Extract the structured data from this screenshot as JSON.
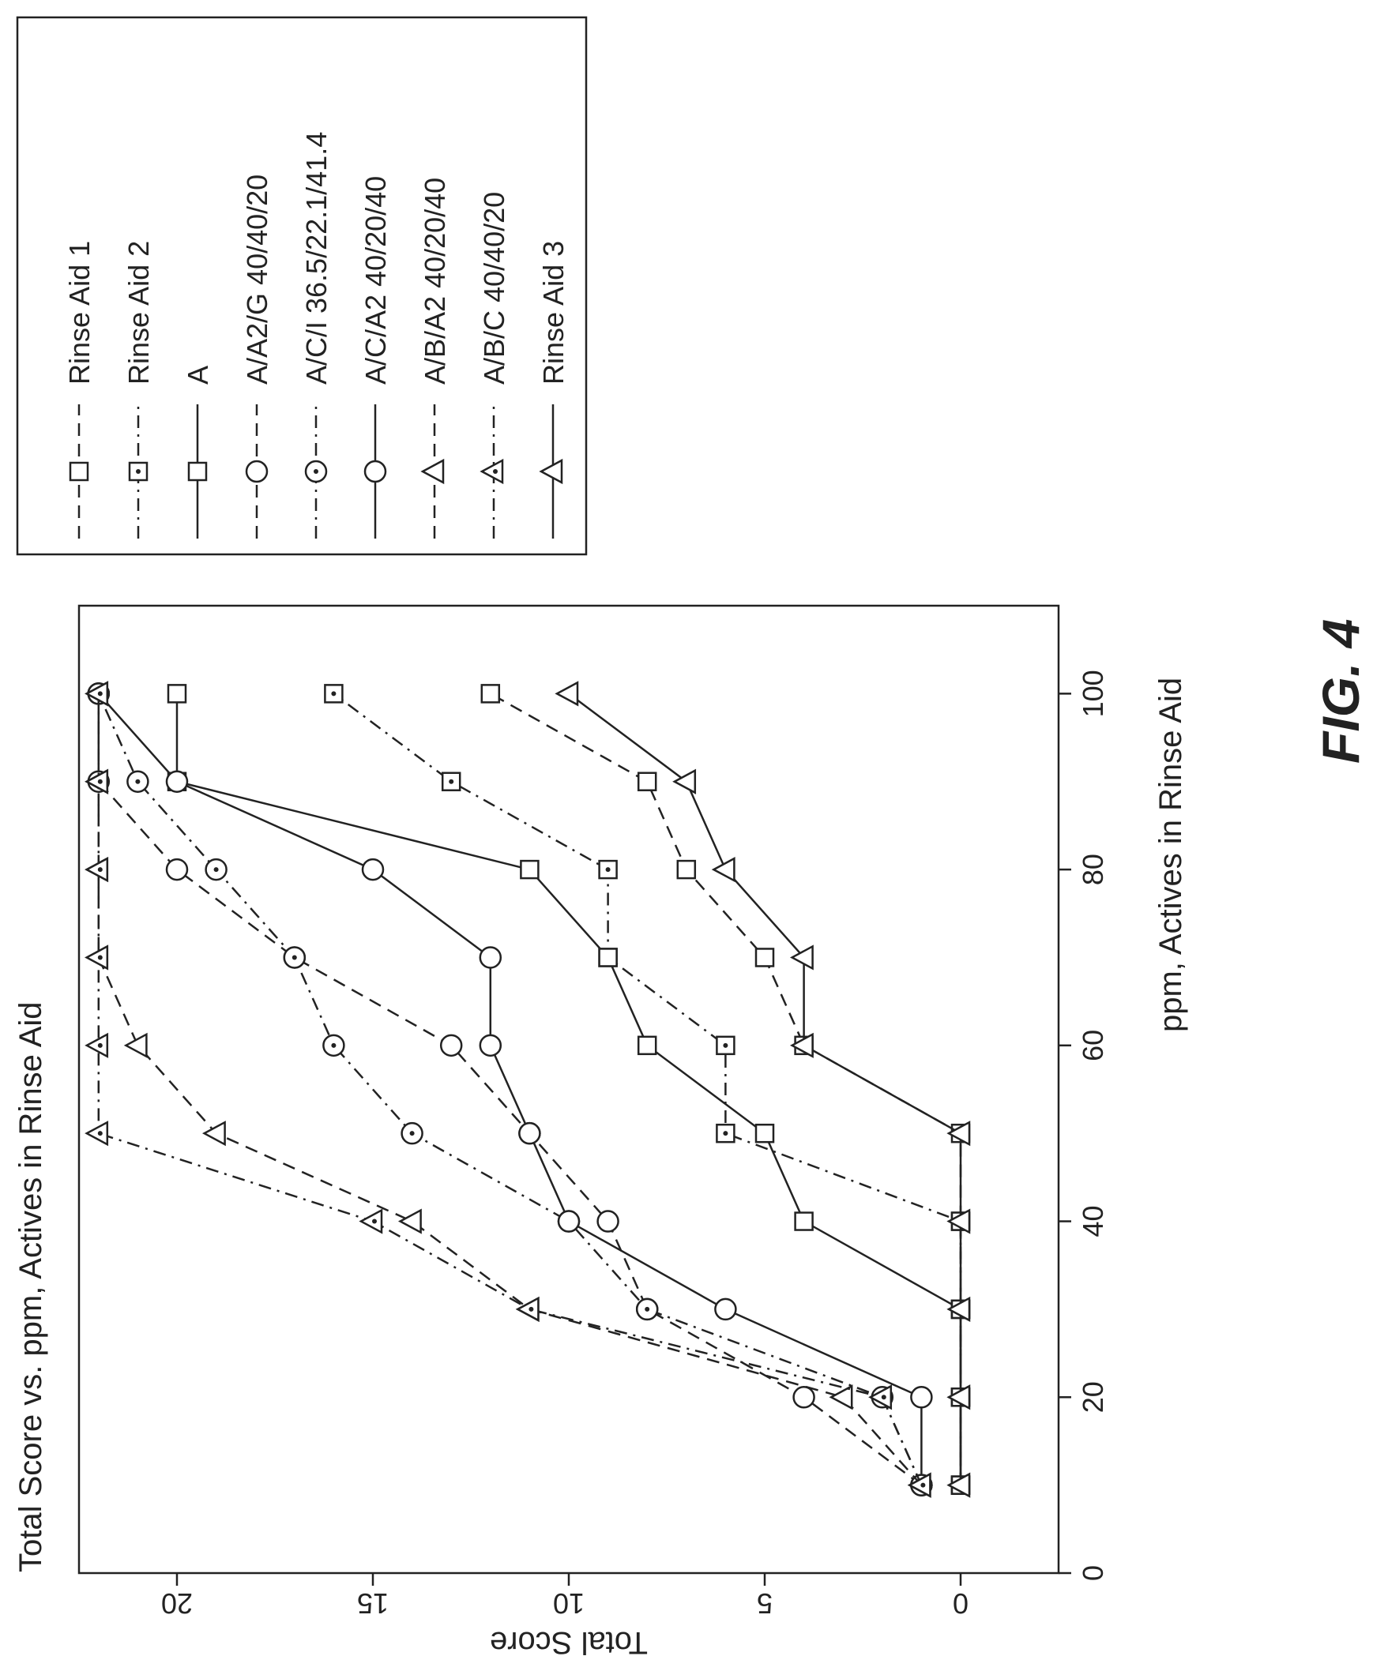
{
  "chart_data": {
    "type": "line",
    "title": "Total Score vs. ppm, Actives in Rinse Aid",
    "xlabel": "ppm, Actives in Rinse Aid",
    "ylabel": "Total Score",
    "xlim": [
      0,
      110
    ],
    "ylim": [
      -2.5,
      22.5
    ],
    "xticks": [
      0,
      20,
      40,
      60,
      80,
      100
    ],
    "yticks": [
      0,
      5,
      10,
      15,
      20
    ],
    "legend_position": "right",
    "figure_label": "FIG. 4",
    "x": [
      10,
      20,
      30,
      40,
      50,
      60,
      70,
      80,
      90,
      100
    ],
    "series": [
      {
        "name": "Rinse Aid 1",
        "marker": "square",
        "dash": "dashed",
        "values": [
          0,
          0,
          0,
          0,
          0,
          4,
          5,
          7,
          8,
          12
        ]
      },
      {
        "name": "Rinse Aid 2",
        "marker": "square-dot",
        "dash": "dashdot",
        "values": [
          0,
          0,
          0,
          0,
          6,
          6,
          9,
          9,
          13,
          16
        ]
      },
      {
        "name": "A",
        "marker": "square",
        "dash": "solid",
        "values": [
          0,
          0,
          0,
          4,
          5,
          8,
          9,
          11,
          20,
          20
        ]
      },
      {
        "name": "A/A2/G 40/40/20",
        "marker": "circle",
        "dash": "dashed",
        "values": [
          1,
          4,
          8,
          9,
          11,
          13,
          17,
          20,
          22,
          22
        ]
      },
      {
        "name": "A/C/I 36.5/22.1/41.4",
        "marker": "circle-dot",
        "dash": "dashdot",
        "values": [
          1,
          2,
          8,
          10,
          14,
          16,
          17,
          19,
          21,
          22
        ]
      },
      {
        "name": "A/C/A2 40/20/40",
        "marker": "circle",
        "dash": "solid",
        "values": [
          1,
          1,
          6,
          10,
          11,
          12,
          12,
          15,
          20,
          22
        ]
      },
      {
        "name": "A/B/A2 40/20/40",
        "marker": "triangle",
        "dash": "dashed",
        "values": [
          1,
          3,
          11,
          14,
          19,
          21,
          22,
          22,
          22,
          22
        ]
      },
      {
        "name": "A/B/C 40/40/20",
        "marker": "triangle-dot",
        "dash": "dashdot",
        "values": [
          1,
          2,
          11,
          15,
          22,
          22,
          22,
          22,
          22,
          22
        ]
      },
      {
        "name": "Rinse Aid 3",
        "marker": "triangle",
        "dash": "solid",
        "values": [
          0,
          0,
          0,
          0,
          0,
          4,
          4,
          6,
          7,
          10
        ]
      }
    ]
  }
}
